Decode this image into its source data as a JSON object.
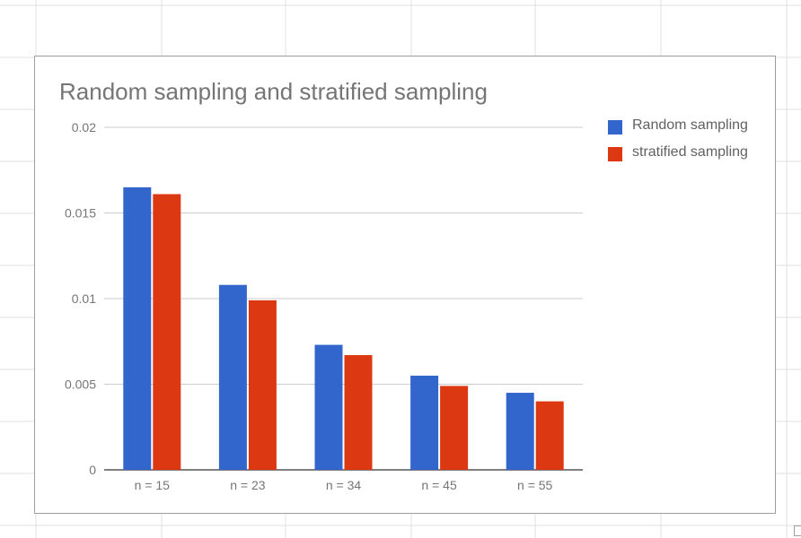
{
  "chart_data": {
    "type": "bar",
    "title": "Random sampling and stratified sampling",
    "categories": [
      "n = 15",
      "n = 23",
      "n = 34",
      "n = 45",
      "n = 55"
    ],
    "series": [
      {
        "name": "Random sampling",
        "color": "#3366cc",
        "values": [
          0.0165,
          0.0108,
          0.0073,
          0.0055,
          0.0045
        ]
      },
      {
        "name": "stratified sampling",
        "color": "#dc3912",
        "values": [
          0.0161,
          0.0099,
          0.0067,
          0.0049,
          0.004
        ]
      }
    ],
    "yticks": [
      "0",
      "0.005",
      "0.01",
      "0.015",
      "0.02"
    ],
    "ylim": [
      0,
      0.02
    ],
    "grid": true,
    "legend_position": "right"
  }
}
